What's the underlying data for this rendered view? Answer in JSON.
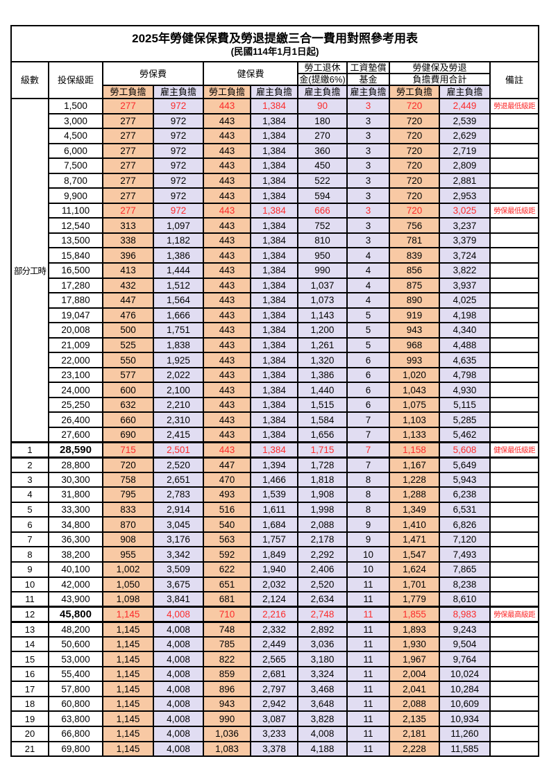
{
  "title": "2025年勞健保保費及勞退提繳三合一費用對照參考用表",
  "subtitle": "(民國114年1月1日起)",
  "header": {
    "level": "級數",
    "bracket": "投保級距",
    "labor": "勞保費",
    "health": "健保費",
    "pension_line1": "勞工退休",
    "pension_line2": "金(提繳6%)",
    "wage_line1": "工資墊償",
    "wage_line2": "基金",
    "total_line1": "勞健保及勞退",
    "total_line2": "負擔費用合計",
    "note": "備註",
    "employee": "勞工負擔",
    "employer": "雇主負擔"
  },
  "part_time_label": "部分工時",
  "part_time_rowspan": 23,
  "colors": {
    "employee_bg": "#F8C9A4",
    "employer_bg": "#E1DDF2",
    "highlight_text": "#FB2B2B",
    "grid": "#000000"
  },
  "rows": [
    {
      "level": "",
      "bracket": "1,500",
      "vals": [
        "277",
        "972",
        "443",
        "1,384",
        "90",
        "3",
        "720",
        "2,449"
      ],
      "note": "勞退最低級距",
      "red": true,
      "emph": false
    },
    {
      "level": "",
      "bracket": "3,000",
      "vals": [
        "277",
        "972",
        "443",
        "1,384",
        "180",
        "3",
        "720",
        "2,539"
      ],
      "note": "",
      "red": false,
      "emph": false
    },
    {
      "level": "",
      "bracket": "4,500",
      "vals": [
        "277",
        "972",
        "443",
        "1,384",
        "270",
        "3",
        "720",
        "2,629"
      ],
      "note": "",
      "red": false,
      "emph": false
    },
    {
      "level": "",
      "bracket": "6,000",
      "vals": [
        "277",
        "972",
        "443",
        "1,384",
        "360",
        "3",
        "720",
        "2,719"
      ],
      "note": "",
      "red": false,
      "emph": false
    },
    {
      "level": "",
      "bracket": "7,500",
      "vals": [
        "277",
        "972",
        "443",
        "1,384",
        "450",
        "3",
        "720",
        "2,809"
      ],
      "note": "",
      "red": false,
      "emph": false
    },
    {
      "level": "",
      "bracket": "8,700",
      "vals": [
        "277",
        "972",
        "443",
        "1,384",
        "522",
        "3",
        "720",
        "2,881"
      ],
      "note": "",
      "red": false,
      "emph": false
    },
    {
      "level": "",
      "bracket": "9,900",
      "vals": [
        "277",
        "972",
        "443",
        "1,384",
        "594",
        "3",
        "720",
        "2,953"
      ],
      "note": "",
      "red": false,
      "emph": false
    },
    {
      "level": "",
      "bracket": "11,100",
      "vals": [
        "277",
        "972",
        "443",
        "1,384",
        "666",
        "3",
        "720",
        "3,025"
      ],
      "note": "勞保最低級距",
      "red": true,
      "emph": false
    },
    {
      "level": "",
      "bracket": "12,540",
      "vals": [
        "313",
        "1,097",
        "443",
        "1,384",
        "752",
        "3",
        "756",
        "3,237"
      ],
      "note": "",
      "red": false,
      "emph": false
    },
    {
      "level": "",
      "bracket": "13,500",
      "vals": [
        "338",
        "1,182",
        "443",
        "1,384",
        "810",
        "3",
        "781",
        "3,379"
      ],
      "note": "",
      "red": false,
      "emph": false
    },
    {
      "level": "",
      "bracket": "15,840",
      "vals": [
        "396",
        "1,386",
        "443",
        "1,384",
        "950",
        "4",
        "839",
        "3,724"
      ],
      "note": "",
      "red": false,
      "emph": false
    },
    {
      "level": "",
      "bracket": "16,500",
      "vals": [
        "413",
        "1,444",
        "443",
        "1,384",
        "990",
        "4",
        "856",
        "3,822"
      ],
      "note": "",
      "red": false,
      "emph": false
    },
    {
      "level": "",
      "bracket": "17,280",
      "vals": [
        "432",
        "1,512",
        "443",
        "1,384",
        "1,037",
        "4",
        "875",
        "3,937"
      ],
      "note": "",
      "red": false,
      "emph": false
    },
    {
      "level": "",
      "bracket": "17,880",
      "vals": [
        "447",
        "1,564",
        "443",
        "1,384",
        "1,073",
        "4",
        "890",
        "4,025"
      ],
      "note": "",
      "red": false,
      "emph": false
    },
    {
      "level": "",
      "bracket": "19,047",
      "vals": [
        "476",
        "1,666",
        "443",
        "1,384",
        "1,143",
        "5",
        "919",
        "4,198"
      ],
      "note": "",
      "red": false,
      "emph": false
    },
    {
      "level": "",
      "bracket": "20,008",
      "vals": [
        "500",
        "1,751",
        "443",
        "1,384",
        "1,200",
        "5",
        "943",
        "4,340"
      ],
      "note": "",
      "red": false,
      "emph": false
    },
    {
      "level": "",
      "bracket": "21,009",
      "vals": [
        "525",
        "1,838",
        "443",
        "1,384",
        "1,261",
        "5",
        "968",
        "4,488"
      ],
      "note": "",
      "red": false,
      "emph": false
    },
    {
      "level": "",
      "bracket": "22,000",
      "vals": [
        "550",
        "1,925",
        "443",
        "1,384",
        "1,320",
        "6",
        "993",
        "4,635"
      ],
      "note": "",
      "red": false,
      "emph": false
    },
    {
      "level": "",
      "bracket": "23,100",
      "vals": [
        "577",
        "2,022",
        "443",
        "1,384",
        "1,386",
        "6",
        "1,020",
        "4,798"
      ],
      "note": "",
      "red": false,
      "emph": false
    },
    {
      "level": "",
      "bracket": "24,000",
      "vals": [
        "600",
        "2,100",
        "443",
        "1,384",
        "1,440",
        "6",
        "1,043",
        "4,930"
      ],
      "note": "",
      "red": false,
      "emph": false
    },
    {
      "level": "",
      "bracket": "25,250",
      "vals": [
        "632",
        "2,210",
        "443",
        "1,384",
        "1,515",
        "6",
        "1,075",
        "5,115"
      ],
      "note": "",
      "red": false,
      "emph": false
    },
    {
      "level": "",
      "bracket": "26,400",
      "vals": [
        "660",
        "2,310",
        "443",
        "1,384",
        "1,584",
        "7",
        "1,103",
        "5,285"
      ],
      "note": "",
      "red": false,
      "emph": false
    },
    {
      "level": "",
      "bracket": "27,600",
      "vals": [
        "690",
        "2,415",
        "443",
        "1,384",
        "1,656",
        "7",
        "1,133",
        "5,462"
      ],
      "note": "",
      "red": false,
      "emph": false
    },
    {
      "level": "1",
      "bracket": "28,590",
      "vals": [
        "715",
        "2,501",
        "443",
        "1,384",
        "1,715",
        "7",
        "1,158",
        "5,608"
      ],
      "note": "健保最低級距",
      "red": true,
      "emph": true
    },
    {
      "level": "2",
      "bracket": "28,800",
      "vals": [
        "720",
        "2,520",
        "447",
        "1,394",
        "1,728",
        "7",
        "1,167",
        "5,649"
      ],
      "note": "",
      "red": false,
      "emph": false
    },
    {
      "level": "3",
      "bracket": "30,300",
      "vals": [
        "758",
        "2,651",
        "470",
        "1,466",
        "1,818",
        "8",
        "1,228",
        "5,943"
      ],
      "note": "",
      "red": false,
      "emph": false
    },
    {
      "level": "4",
      "bracket": "31,800",
      "vals": [
        "795",
        "2,783",
        "493",
        "1,539",
        "1,908",
        "8",
        "1,288",
        "6,238"
      ],
      "note": "",
      "red": false,
      "emph": false
    },
    {
      "level": "5",
      "bracket": "33,300",
      "vals": [
        "833",
        "2,914",
        "516",
        "1,611",
        "1,998",
        "8",
        "1,349",
        "6,531"
      ],
      "note": "",
      "red": false,
      "emph": false
    },
    {
      "level": "6",
      "bracket": "34,800",
      "vals": [
        "870",
        "3,045",
        "540",
        "1,684",
        "2,088",
        "9",
        "1,410",
        "6,826"
      ],
      "note": "",
      "red": false,
      "emph": false
    },
    {
      "level": "7",
      "bracket": "36,300",
      "vals": [
        "908",
        "3,176",
        "563",
        "1,757",
        "2,178",
        "9",
        "1,471",
        "7,120"
      ],
      "note": "",
      "red": false,
      "emph": false
    },
    {
      "level": "8",
      "bracket": "38,200",
      "vals": [
        "955",
        "3,342",
        "592",
        "1,849",
        "2,292",
        "10",
        "1,547",
        "7,493"
      ],
      "note": "",
      "red": false,
      "emph": false
    },
    {
      "level": "9",
      "bracket": "40,100",
      "vals": [
        "1,002",
        "3,509",
        "622",
        "1,940",
        "2,406",
        "10",
        "1,624",
        "7,865"
      ],
      "note": "",
      "red": false,
      "emph": false
    },
    {
      "level": "10",
      "bracket": "42,000",
      "vals": [
        "1,050",
        "3,675",
        "651",
        "2,032",
        "2,520",
        "11",
        "1,701",
        "8,238"
      ],
      "note": "",
      "red": false,
      "emph": false
    },
    {
      "level": "11",
      "bracket": "43,900",
      "vals": [
        "1,098",
        "3,841",
        "681",
        "2,124",
        "2,634",
        "11",
        "1,779",
        "8,610"
      ],
      "note": "",
      "red": false,
      "emph": false
    },
    {
      "level": "12",
      "bracket": "45,800",
      "vals": [
        "1,145",
        "4,008",
        "710",
        "2,216",
        "2,748",
        "11",
        "1,855",
        "8,983"
      ],
      "note": "勞保最高級距",
      "red": true,
      "emph": true
    },
    {
      "level": "13",
      "bracket": "48,200",
      "vals": [
        "1,145",
        "4,008",
        "748",
        "2,332",
        "2,892",
        "11",
        "1,893",
        "9,243"
      ],
      "note": "",
      "red": false,
      "emph": false
    },
    {
      "level": "14",
      "bracket": "50,600",
      "vals": [
        "1,145",
        "4,008",
        "785",
        "2,449",
        "3,036",
        "11",
        "1,930",
        "9,504"
      ],
      "note": "",
      "red": false,
      "emph": false
    },
    {
      "level": "15",
      "bracket": "53,000",
      "vals": [
        "1,145",
        "4,008",
        "822",
        "2,565",
        "3,180",
        "11",
        "1,967",
        "9,764"
      ],
      "note": "",
      "red": false,
      "emph": false
    },
    {
      "level": "16",
      "bracket": "55,400",
      "vals": [
        "1,145",
        "4,008",
        "859",
        "2,681",
        "3,324",
        "11",
        "2,004",
        "10,024"
      ],
      "note": "",
      "red": false,
      "emph": false
    },
    {
      "level": "17",
      "bracket": "57,800",
      "vals": [
        "1,145",
        "4,008",
        "896",
        "2,797",
        "3,468",
        "11",
        "2,041",
        "10,284"
      ],
      "note": "",
      "red": false,
      "emph": false
    },
    {
      "level": "18",
      "bracket": "60,800",
      "vals": [
        "1,145",
        "4,008",
        "943",
        "2,942",
        "3,648",
        "11",
        "2,088",
        "10,609"
      ],
      "note": "",
      "red": false,
      "emph": false
    },
    {
      "level": "19",
      "bracket": "63,800",
      "vals": [
        "1,145",
        "4,008",
        "990",
        "3,087",
        "3,828",
        "11",
        "2,135",
        "10,934"
      ],
      "note": "",
      "red": false,
      "emph": false
    },
    {
      "level": "20",
      "bracket": "66,800",
      "vals": [
        "1,145",
        "4,008",
        "1,036",
        "3,233",
        "4,008",
        "11",
        "2,181",
        "11,260"
      ],
      "note": "",
      "red": false,
      "emph": false
    },
    {
      "level": "21",
      "bracket": "69,800",
      "vals": [
        "1,145",
        "4,008",
        "1,083",
        "3,378",
        "4,188",
        "11",
        "2,228",
        "11,585"
      ],
      "note": "",
      "red": false,
      "emph": false
    }
  ]
}
